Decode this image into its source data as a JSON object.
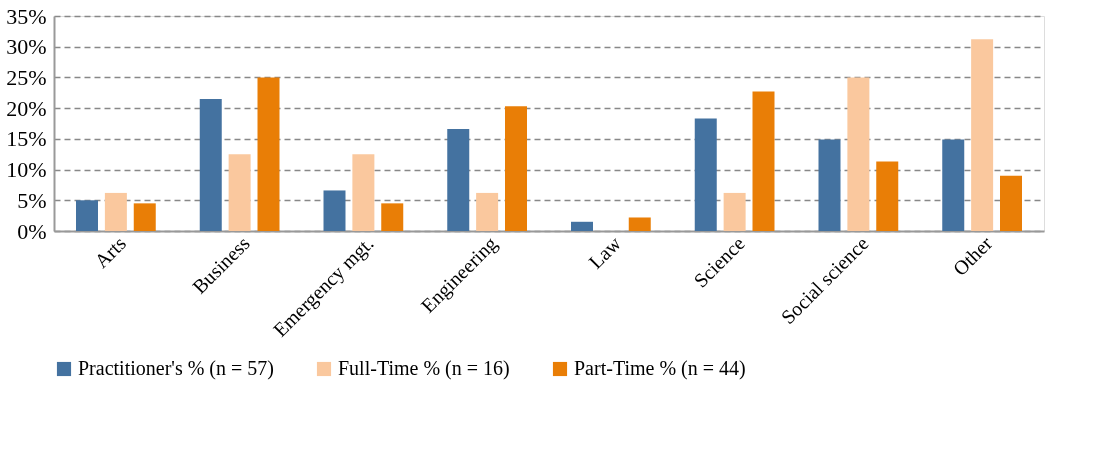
{
  "chart_data": {
    "type": "bar",
    "categories": [
      "Arts",
      "Business",
      "Emergency mgt.",
      "Engineering",
      "Law",
      "Science",
      "Social science",
      "Other"
    ],
    "series": [
      {
        "name": "Practitioner's % (n = 57)",
        "color": "#4472a0",
        "values": [
          5.0,
          21.5,
          6.6,
          16.6,
          1.5,
          18.3,
          14.9,
          14.9
        ]
      },
      {
        "name": "Full-Time % (n = 16)",
        "color": "#fac89e",
        "values": [
          6.2,
          12.5,
          12.5,
          6.2,
          0,
          6.2,
          25.0,
          31.2
        ]
      },
      {
        "name": "Part-Time % (n = 44)",
        "color": "#e97e06",
        "values": [
          4.5,
          25.0,
          4.5,
          20.3,
          2.2,
          22.7,
          11.3,
          9.0
        ]
      }
    ],
    "ylim": [
      0,
      35
    ],
    "yticks": [
      {
        "value": 0,
        "label": "0%"
      },
      {
        "value": 5,
        "label": "5%"
      },
      {
        "value": 10,
        "label": "10%"
      },
      {
        "value": 15,
        "label": "15%"
      },
      {
        "value": 20,
        "label": "20%"
      },
      {
        "value": 25,
        "label": "25%"
      },
      {
        "value": 30,
        "label": "30%"
      },
      {
        "value": 35,
        "label": "35%"
      }
    ],
    "grid": "y",
    "legend": "bottom"
  }
}
